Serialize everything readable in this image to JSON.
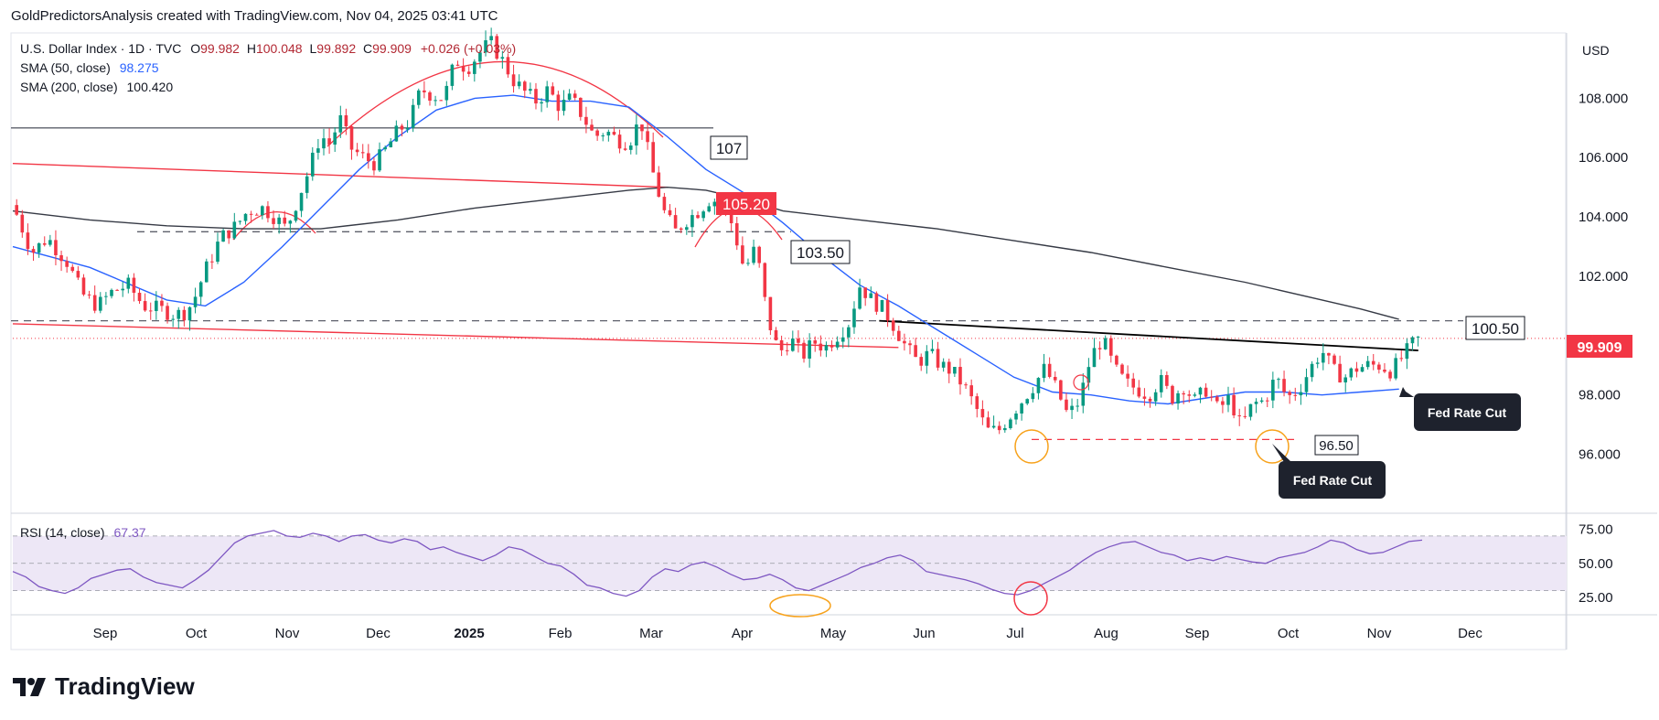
{
  "header": {
    "caption": "GoldPredictorsAnalysis created with TradingView.com, Nov 04, 2025 03:41 UTC"
  },
  "legend": {
    "symbol": "U.S. Dollar Index · 1D · TVC",
    "o_label": "O",
    "o": "99.982",
    "h_label": "H",
    "h": "100.048",
    "l_label": "L",
    "l": "99.892",
    "c_label": "C",
    "c": "99.909",
    "change": "+0.026 (+0.03%)",
    "sma50_label": "SMA (50, close)",
    "sma50_value": "98.275",
    "sma200_label": "SMA (200, close)",
    "sma200_value": "100.420",
    "rsi_label": "RSI (14, close)",
    "rsi_value": "67.37"
  },
  "currency": "USD",
  "brand": "TradingView",
  "colors": {
    "up": "#089981",
    "down": "#f23645",
    "sma50": "#2962ff",
    "sma200": "#363a45",
    "rsi": "#7e57c2",
    "rsi_band": "#ede7f6",
    "red_label": "#f23645",
    "last_price": "#f23645",
    "callout_bg": "#1e222d",
    "circle_orange": "#f7a21b",
    "circle_red": "#f23645"
  },
  "chart_data": [
    {
      "type": "candlestick",
      "title": "U.S. Dollar Index · 1D · TVC",
      "x_ticks": [
        "Sep",
        "Oct",
        "Nov",
        "Dec",
        "2025",
        "Feb",
        "Mar",
        "Apr",
        "May",
        "Jun",
        "Jul",
        "Aug",
        "Sep",
        "Oct",
        "Nov",
        "Dec"
      ],
      "y_ticks": [
        "108.000",
        "106.000",
        "104.000",
        "102.000",
        "98.000",
        "96.000"
      ],
      "ylim": [
        94.2,
        110.2
      ],
      "last_price": 99.909,
      "last_price_label": "99.909",
      "price_path": [
        [
          0,
          104.4
        ],
        [
          5,
          102.8
        ],
        [
          9,
          103.3
        ],
        [
          14,
          102.5
        ],
        [
          18,
          101.4
        ],
        [
          22,
          101.0
        ],
        [
          26,
          101.5
        ],
        [
          30,
          101.7
        ],
        [
          34,
          101.0
        ],
        [
          38,
          100.9
        ],
        [
          42,
          100.7
        ],
        [
          45,
          100.8
        ],
        [
          47,
          101.2
        ],
        [
          50,
          102.2
        ],
        [
          54,
          103.3
        ],
        [
          58,
          103.7
        ],
        [
          61,
          104.2
        ],
        [
          65,
          104.3
        ],
        [
          68,
          104.0
        ],
        [
          71,
          103.6
        ],
        [
          74,
          104.6
        ],
        [
          77,
          105.6
        ],
        [
          80,
          106.8
        ],
        [
          82,
          106.4
        ],
        [
          85,
          107.3
        ],
        [
          88,
          106.3
        ],
        [
          91,
          106.0
        ],
        [
          94,
          105.8
        ],
        [
          97,
          106.3
        ],
        [
          100,
          106.9
        ],
        [
          103,
          107.2
        ],
        [
          106,
          108.3
        ],
        [
          109,
          108.1
        ],
        [
          112,
          108.0
        ],
        [
          115,
          109.3
        ],
        [
          118,
          109.0
        ],
        [
          121,
          109.5
        ],
        [
          124,
          109.9
        ],
        [
          127,
          109.3
        ],
        [
          130,
          108.6
        ],
        [
          133,
          108.2
        ],
        [
          136,
          107.9
        ],
        [
          139,
          108.3
        ],
        [
          142,
          107.7
        ],
        [
          145,
          108.0
        ],
        [
          148,
          107.4
        ],
        [
          151,
          106.7
        ],
        [
          154,
          106.9
        ],
        [
          157,
          106.6
        ],
        [
          160,
          106.5
        ],
        [
          163,
          107.3
        ],
        [
          166,
          105.6
        ],
        [
          169,
          104.2
        ],
        [
          172,
          103.5
        ],
        [
          175,
          103.9
        ],
        [
          178,
          104.2
        ],
        [
          181,
          104.6
        ],
        [
          184,
          104.5
        ],
        [
          187,
          103.7
        ],
        [
          190,
          102.2
        ],
        [
          193,
          103.0
        ],
        [
          196,
          100.6
        ],
        [
          199,
          99.4
        ],
        [
          202,
          99.9
        ],
        [
          205,
          99.3
        ],
        [
          208,
          99.8
        ],
        [
          211,
          99.6
        ],
        [
          214,
          100.0
        ],
        [
          217,
          100.4
        ],
        [
          220,
          101.7
        ],
        [
          223,
          101.2
        ],
        [
          226,
          100.9
        ],
        [
          229,
          100.3
        ],
        [
          232,
          99.6
        ],
        [
          235,
          99.1
        ],
        [
          238,
          99.4
        ],
        [
          241,
          99.0
        ],
        [
          244,
          98.8
        ],
        [
          247,
          98.3
        ],
        [
          250,
          97.6
        ],
        [
          253,
          96.8
        ],
        [
          256,
          96.8
        ],
        [
          259,
          97.3
        ],
        [
          262,
          97.8
        ],
        [
          265,
          98.3
        ],
        [
          268,
          98.9
        ],
        [
          271,
          98.2
        ],
        [
          274,
          97.3
        ],
        [
          277,
          97.8
        ],
        [
          280,
          99.3
        ],
        [
          283,
          99.9
        ],
        [
          286,
          98.9
        ],
        [
          289,
          98.4
        ],
        [
          292,
          98.2
        ],
        [
          295,
          98.0
        ],
        [
          298,
          98.5
        ],
        [
          301,
          97.9
        ],
        [
          304,
          98.3
        ],
        [
          307,
          97.8
        ],
        [
          310,
          98.2
        ],
        [
          313,
          97.5
        ],
        [
          316,
          97.9
        ],
        [
          319,
          96.9
        ],
        [
          322,
          97.7
        ],
        [
          325,
          97.8
        ],
        [
          328,
          98.6
        ],
        [
          331,
          97.9
        ],
        [
          334,
          98.2
        ],
        [
          337,
          98.9
        ],
        [
          340,
          99.5
        ],
        [
          343,
          98.8
        ],
        [
          346,
          98.6
        ],
        [
          349,
          98.9
        ],
        [
          352,
          99.0
        ],
        [
          355,
          99.0
        ],
        [
          358,
          98.8
        ],
        [
          361,
          99.3
        ],
        [
          364,
          99.8
        ],
        [
          366,
          99.95
        ]
      ],
      "sma50_path": [
        [
          0,
          103.0
        ],
        [
          20,
          102.3
        ],
        [
          40,
          101.2
        ],
        [
          50,
          101.0
        ],
        [
          60,
          101.8
        ],
        [
          70,
          103.0
        ],
        [
          80,
          104.3
        ],
        [
          90,
          105.6
        ],
        [
          100,
          106.7
        ],
        [
          110,
          107.6
        ],
        [
          120,
          108.0
        ],
        [
          130,
          108.1
        ],
        [
          140,
          107.9
        ],
        [
          150,
          107.9
        ],
        [
          160,
          107.7
        ],
        [
          170,
          106.7
        ],
        [
          180,
          105.6
        ],
        [
          190,
          104.8
        ],
        [
          200,
          103.8
        ],
        [
          210,
          102.7
        ],
        [
          220,
          101.7
        ],
        [
          230,
          101.0
        ],
        [
          240,
          100.2
        ],
        [
          250,
          99.4
        ],
        [
          260,
          98.6
        ],
        [
          270,
          98.1
        ],
        [
          280,
          98.0
        ],
        [
          290,
          97.8
        ],
        [
          300,
          97.7
        ],
        [
          310,
          97.9
        ],
        [
          320,
          98.1
        ],
        [
          330,
          98.1
        ],
        [
          340,
          98.0
        ],
        [
          350,
          98.1
        ],
        [
          360,
          98.2
        ]
      ],
      "sma200_path": [
        [
          0,
          104.2
        ],
        [
          20,
          103.9
        ],
        [
          40,
          103.7
        ],
        [
          60,
          103.6
        ],
        [
          80,
          103.6
        ],
        [
          100,
          103.9
        ],
        [
          120,
          104.3
        ],
        [
          140,
          104.6
        ],
        [
          160,
          104.9
        ],
        [
          170,
          105.0
        ],
        [
          180,
          104.9
        ],
        [
          190,
          104.6
        ],
        [
          200,
          104.2
        ],
        [
          220,
          103.9
        ],
        [
          240,
          103.6
        ],
        [
          260,
          103.2
        ],
        [
          280,
          102.8
        ],
        [
          300,
          102.3
        ],
        [
          320,
          101.8
        ],
        [
          340,
          101.2
        ],
        [
          350,
          100.9
        ],
        [
          360,
          100.55
        ]
      ],
      "horizontal_levels": [
        {
          "value": 107.0,
          "label": "107",
          "style": "solid-dark"
        },
        {
          "value": 103.5,
          "label": "103.50",
          "style": "dashed"
        },
        {
          "value": 100.5,
          "label": "100.50",
          "style": "dashed"
        },
        {
          "value": 96.5,
          "label": "96.50",
          "style": "dashed-red"
        }
      ],
      "level_label_105": "105.20",
      "trendlines": [
        {
          "from": [
            0,
            105.8
          ],
          "to": [
            170,
            105.0
          ],
          "color": "red"
        },
        {
          "from": [
            0,
            100.4
          ],
          "to": [
            230,
            99.6
          ],
          "color": "red"
        },
        {
          "from": [
            225,
            100.5
          ],
          "to": [
            365,
            99.5
          ],
          "color": "black"
        }
      ],
      "annotations": [
        {
          "text": "Fed Rate Cut",
          "target": [
            355,
            98.3
          ]
        },
        {
          "text": "Fed Rate Cut",
          "target": [
            319,
            96.8
          ]
        }
      ]
    },
    {
      "type": "line",
      "title": "RSI (14, close)",
      "y_ticks": [
        "75.00",
        "50.00",
        "25.00"
      ],
      "ylim": [
        15,
        84
      ],
      "bands": [
        70,
        50,
        30
      ],
      "values": [
        44,
        40,
        33,
        30,
        28,
        32,
        39,
        42,
        45,
        46,
        40,
        36,
        34,
        32,
        38,
        45,
        55,
        65,
        70,
        72,
        74,
        70,
        69,
        72,
        70,
        66,
        70,
        71,
        67,
        65,
        68,
        66,
        60,
        62,
        58,
        55,
        52,
        56,
        62,
        60,
        55,
        50,
        48,
        42,
        34,
        32,
        28,
        26,
        30,
        40,
        46,
        44,
        49,
        51,
        47,
        42,
        38,
        39,
        42,
        38,
        32,
        30,
        34,
        38,
        42,
        47,
        50,
        54,
        56,
        52,
        44,
        42,
        40,
        38,
        35,
        31,
        28,
        27,
        30,
        35,
        40,
        45,
        52,
        58,
        62,
        65,
        66,
        62,
        58,
        56,
        52,
        54,
        52,
        55,
        53,
        51,
        50,
        54,
        56,
        58,
        62,
        67,
        65,
        60,
        57,
        58,
        62,
        66,
        67
      ]
    }
  ]
}
